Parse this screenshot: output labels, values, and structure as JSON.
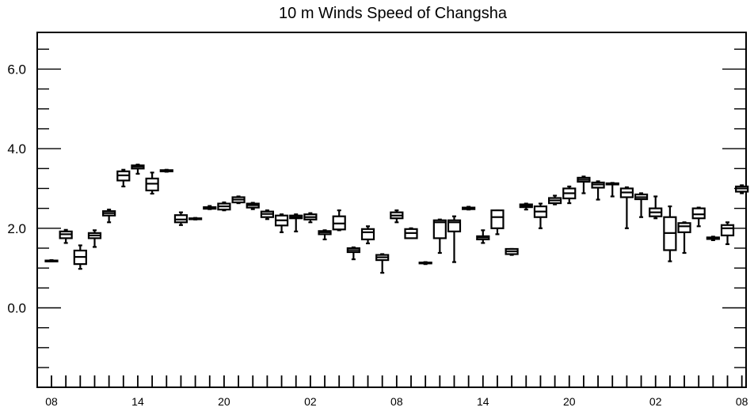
{
  "chart_data": {
    "type": "box",
    "title": "10 m Winds Speed of Changsha",
    "xlabel": "",
    "ylabel": "",
    "ylim": [
      -2.0,
      7.0
    ],
    "yticks": [
      {
        "value": 6.0,
        "label": "6.0"
      },
      {
        "value": 4.0,
        "label": "4.0"
      },
      {
        "value": 2.0,
        "label": "2.0"
      },
      {
        "value": 0.0,
        "label": "0.0"
      }
    ],
    "xlim": [
      0,
      48
    ],
    "xticks": [
      {
        "index": 0,
        "label": "08"
      },
      {
        "index": 6,
        "label": "14"
      },
      {
        "index": 12,
        "label": "20"
      },
      {
        "index": 18,
        "label": "02"
      },
      {
        "index": 24,
        "label": "08"
      },
      {
        "index": 30,
        "label": "14"
      },
      {
        "index": 36,
        "label": "20"
      },
      {
        "index": 42,
        "label": "02"
      },
      {
        "index": 48,
        "label": "08"
      }
    ],
    "boxes": [
      {
        "i": 0,
        "min": 1.17,
        "q1": 1.17,
        "med": 1.18,
        "q3": 1.19,
        "max": 1.2
      },
      {
        "i": 1,
        "min": 1.63,
        "q1": 1.75,
        "med": 1.85,
        "q3": 1.92,
        "max": 1.96
      },
      {
        "i": 2,
        "min": 0.98,
        "q1": 1.1,
        "med": 1.28,
        "q3": 1.44,
        "max": 1.57
      },
      {
        "i": 3,
        "min": 1.53,
        "q1": 1.75,
        "med": 1.82,
        "q3": 1.88,
        "max": 1.95
      },
      {
        "i": 4,
        "min": 2.15,
        "q1": 2.32,
        "med": 2.38,
        "q3": 2.43,
        "max": 2.47
      },
      {
        "i": 5,
        "min": 3.05,
        "q1": 3.2,
        "med": 3.33,
        "q3": 3.43,
        "max": 3.47
      },
      {
        "i": 6,
        "min": 3.37,
        "q1": 3.5,
        "med": 3.55,
        "q3": 3.58,
        "max": 3.6
      },
      {
        "i": 7,
        "min": 2.87,
        "q1": 2.95,
        "med": 3.12,
        "q3": 3.25,
        "max": 3.4
      },
      {
        "i": 8,
        "min": 3.42,
        "q1": 3.43,
        "med": 3.45,
        "q3": 3.46,
        "max": 3.47
      },
      {
        "i": 9,
        "min": 2.08,
        "q1": 2.15,
        "med": 2.22,
        "q3": 2.33,
        "max": 2.4
      },
      {
        "i": 10,
        "min": 2.22,
        "q1": 2.23,
        "med": 2.24,
        "q3": 2.25,
        "max": 2.26
      },
      {
        "i": 11,
        "min": 2.48,
        "q1": 2.49,
        "med": 2.51,
        "q3": 2.53,
        "max": 2.56
      },
      {
        "i": 12,
        "min": 2.45,
        "q1": 2.47,
        "med": 2.55,
        "q3": 2.62,
        "max": 2.65
      },
      {
        "i": 13,
        "min": 2.63,
        "q1": 2.65,
        "med": 2.72,
        "q3": 2.78,
        "max": 2.8
      },
      {
        "i": 14,
        "min": 2.48,
        "q1": 2.52,
        "med": 2.58,
        "q3": 2.62,
        "max": 2.64
      },
      {
        "i": 15,
        "min": 2.23,
        "q1": 2.28,
        "med": 2.36,
        "q3": 2.42,
        "max": 2.45
      },
      {
        "i": 16,
        "min": 1.9,
        "q1": 2.07,
        "med": 2.2,
        "q3": 2.32,
        "max": 2.35
      },
      {
        "i": 17,
        "min": 1.92,
        "q1": 2.25,
        "med": 2.28,
        "q3": 2.32,
        "max": 2.35
      },
      {
        "i": 18,
        "min": 2.15,
        "q1": 2.22,
        "med": 2.28,
        "q3": 2.35,
        "max": 2.38
      },
      {
        "i": 19,
        "min": 1.72,
        "q1": 1.85,
        "med": 1.9,
        "q3": 1.93,
        "max": 1.95
      },
      {
        "i": 20,
        "min": 1.95,
        "q1": 1.97,
        "med": 2.12,
        "q3": 2.3,
        "max": 2.45
      },
      {
        "i": 21,
        "min": 1.22,
        "q1": 1.4,
        "med": 1.45,
        "q3": 1.5,
        "max": 1.52
      },
      {
        "i": 22,
        "min": 1.62,
        "q1": 1.72,
        "med": 1.9,
        "q3": 1.98,
        "max": 2.05
      },
      {
        "i": 23,
        "min": 0.88,
        "q1": 1.2,
        "med": 1.27,
        "q3": 1.33,
        "max": 1.35
      },
      {
        "i": 24,
        "min": 2.15,
        "q1": 2.25,
        "med": 2.32,
        "q3": 2.4,
        "max": 2.45
      },
      {
        "i": 25,
        "min": 1.75,
        "q1": 1.75,
        "med": 1.88,
        "q3": 1.98,
        "max": 2.0
      },
      {
        "i": 26,
        "min": 1.1,
        "q1": 1.12,
        "med": 1.13,
        "q3": 1.14,
        "max": 1.15
      },
      {
        "i": 27,
        "min": 1.38,
        "q1": 1.75,
        "med": 2.15,
        "q3": 2.2,
        "max": 2.22
      },
      {
        "i": 28,
        "min": 1.15,
        "q1": 1.92,
        "med": 2.15,
        "q3": 2.2,
        "max": 2.3
      },
      {
        "i": 29,
        "min": 2.47,
        "q1": 2.48,
        "med": 2.5,
        "q3": 2.52,
        "max": 2.54
      },
      {
        "i": 30,
        "min": 1.63,
        "q1": 1.72,
        "med": 1.77,
        "q3": 1.8,
        "max": 1.95
      },
      {
        "i": 31,
        "min": 1.85,
        "q1": 2.0,
        "med": 2.28,
        "q3": 2.45,
        "max": 2.45
      },
      {
        "i": 32,
        "min": 1.33,
        "q1": 1.35,
        "med": 1.42,
        "q3": 1.48,
        "max": 1.48
      },
      {
        "i": 33,
        "min": 2.47,
        "q1": 2.53,
        "med": 2.57,
        "q3": 2.6,
        "max": 2.62
      },
      {
        "i": 34,
        "min": 2.0,
        "q1": 2.28,
        "med": 2.42,
        "q3": 2.55,
        "max": 2.62
      },
      {
        "i": 35,
        "min": 2.6,
        "q1": 2.63,
        "med": 2.7,
        "q3": 2.76,
        "max": 2.82
      },
      {
        "i": 36,
        "min": 2.63,
        "q1": 2.75,
        "med": 2.88,
        "q3": 3.0,
        "max": 3.05
      },
      {
        "i": 37,
        "min": 2.88,
        "q1": 3.17,
        "med": 3.22,
        "q3": 3.27,
        "max": 3.3
      },
      {
        "i": 38,
        "min": 2.72,
        "q1": 3.02,
        "med": 3.1,
        "q3": 3.15,
        "max": 3.18
      },
      {
        "i": 39,
        "min": 2.8,
        "q1": 3.1,
        "med": 3.12,
        "q3": 3.13,
        "max": 3.14
      },
      {
        "i": 40,
        "min": 2.0,
        "q1": 2.78,
        "med": 2.9,
        "q3": 3.0,
        "max": 3.03
      },
      {
        "i": 41,
        "min": 2.28,
        "q1": 2.73,
        "med": 2.78,
        "q3": 2.85,
        "max": 2.88
      },
      {
        "i": 42,
        "min": 2.25,
        "q1": 2.3,
        "med": 2.4,
        "q3": 2.5,
        "max": 2.8
      },
      {
        "i": 43,
        "min": 1.17,
        "q1": 1.45,
        "med": 1.88,
        "q3": 2.28,
        "max": 2.55
      },
      {
        "i": 44,
        "min": 1.38,
        "q1": 1.9,
        "med": 2.05,
        "q3": 2.13,
        "max": 2.15
      },
      {
        "i": 45,
        "min": 2.05,
        "q1": 2.25,
        "med": 2.35,
        "q3": 2.5,
        "max": 2.52
      },
      {
        "i": 46,
        "min": 1.7,
        "q1": 1.73,
        "med": 1.75,
        "q3": 1.77,
        "max": 1.79
      },
      {
        "i": 47,
        "min": 1.6,
        "q1": 1.82,
        "med": 2.0,
        "q3": 2.08,
        "max": 2.15
      },
      {
        "i": 48,
        "min": 2.88,
        "q1": 2.92,
        "med": 3.0,
        "q3": 3.05,
        "max": 3.08
      }
    ],
    "grid": false,
    "legend": "none"
  }
}
